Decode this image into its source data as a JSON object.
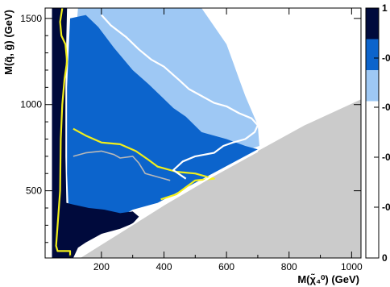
{
  "chart_data": {
    "type": "heatmap",
    "title": "",
    "xlabel": "M(χ̃₄⁰) (GeV)",
    "ylabel": "M(q̃, g̃) (GeV)",
    "xlim": [
      20,
      1030
    ],
    "ylim": [
      110,
      1560
    ],
    "x_ticks": [
      200,
      400,
      600,
      800,
      1000
    ],
    "x_tick_labels": [
      "200",
      "400",
      "600",
      "800",
      "1000"
    ],
    "y_ticks": [
      500,
      1000,
      1500
    ],
    "y_tick_labels": [
      "500",
      "1000",
      "1500"
    ],
    "grid": false,
    "colorbar": {
      "levels": [
        "1",
        "-0",
        "-0",
        "-0",
        "-0",
        "0"
      ],
      "colors": [
        "#000a3c",
        "#0c64cc",
        "#9ec8f4",
        "#ffffff"
      ]
    },
    "colors": {
      "level_3": "#000a3c",
      "level_2": "#0c64cc",
      "level_1": "#9ec8f4",
      "level_0": "#ffffff",
      "excluded_region": "#cbcbcb",
      "contour_yellow": "#f2ef1a",
      "contour_white": "#ffffff",
      "contour_grey": "#b8b8b8"
    },
    "regions": [
      {
        "level": 1,
        "points": [
          [
            125,
            1560
          ],
          [
            520,
            1560
          ],
          [
            600,
            1350
          ],
          [
            620,
            1250
          ],
          [
            640,
            1150
          ],
          [
            660,
            1050
          ],
          [
            700,
            880
          ],
          [
            705,
            760
          ],
          [
            640,
            720
          ],
          [
            560,
            710
          ],
          [
            480,
            760
          ],
          [
            410,
            800
          ],
          [
            360,
            850
          ],
          [
            310,
            940
          ],
          [
            255,
            1050
          ],
          [
            200,
            1180
          ],
          [
            150,
            1330
          ],
          [
            120,
            1440
          ]
        ]
      },
      {
        "level": 2,
        "points": [
          [
            100,
            1500
          ],
          [
            150,
            1520
          ],
          [
            190,
            1450
          ],
          [
            240,
            1330
          ],
          [
            300,
            1200
          ],
          [
            350,
            1120
          ],
          [
            390,
            1050
          ],
          [
            430,
            980
          ],
          [
            470,
            930
          ],
          [
            520,
            840
          ],
          [
            600,
            800
          ],
          [
            660,
            760
          ],
          [
            700,
            740
          ],
          [
            380,
            430
          ],
          [
            300,
            390
          ],
          [
            240,
            330
          ],
          [
            200,
            290
          ],
          [
            165,
            250
          ],
          [
            130,
            220
          ],
          [
            100,
            200
          ],
          [
            90,
            600
          ],
          [
            90,
            1100
          ]
        ]
      },
      {
        "level": 3,
        "points": [
          [
            42,
            1560
          ],
          [
            90,
            1560
          ],
          [
            88,
            1400
          ],
          [
            85,
            1100
          ],
          [
            85,
            700
          ],
          [
            88,
            430
          ],
          [
            110,
            420
          ],
          [
            160,
            400
          ],
          [
            210,
            390
          ],
          [
            260,
            370
          ],
          [
            300,
            380
          ],
          [
            320,
            350
          ],
          [
            300,
            310
          ],
          [
            260,
            280
          ],
          [
            200,
            250
          ],
          [
            150,
            200
          ],
          [
            125,
            170
          ],
          [
            110,
            110
          ],
          [
            42,
            110
          ]
        ]
      },
      {
        "level": 0,
        "points": [
          [
            20,
            1560
          ],
          [
            42,
            1560
          ],
          [
            42,
            110
          ],
          [
            20,
            110
          ]
        ]
      }
    ],
    "excluded_region": [
      [
        20,
        110
      ],
      [
        128,
        110
      ],
      [
        260,
        260
      ],
      [
        400,
        420
      ],
      [
        550,
        580
      ],
      [
        700,
        730
      ],
      [
        850,
        880
      ],
      [
        1030,
        1030
      ],
      [
        1030,
        110
      ]
    ],
    "contours": [
      {
        "color": "yellow",
        "points": [
          [
            75,
            1560
          ],
          [
            68,
            1480
          ],
          [
            72,
            1400
          ],
          [
            85,
            1350
          ],
          [
            90,
            1250
          ],
          [
            82,
            1150
          ],
          [
            75,
            1000
          ],
          [
            70,
            800
          ],
          [
            68,
            500
          ],
          [
            60,
            300
          ],
          [
            55,
            180
          ],
          [
            60,
            150
          ],
          [
            100,
            150
          ],
          [
            100,
            120
          ]
        ]
      },
      {
        "color": "yellow",
        "points": [
          [
            110,
            860
          ],
          [
            150,
            820
          ],
          [
            200,
            780
          ],
          [
            260,
            770
          ],
          [
            310,
            730
          ],
          [
            350,
            680
          ],
          [
            380,
            640
          ],
          [
            440,
            610
          ],
          [
            500,
            600
          ],
          [
            560,
            570
          ],
          [
            500,
            560
          ],
          [
            470,
            520
          ],
          [
            440,
            480
          ],
          [
            390,
            450
          ]
        ]
      },
      {
        "color": "grey",
        "points": [
          [
            110,
            700
          ],
          [
            150,
            720
          ],
          [
            200,
            730
          ],
          [
            240,
            710
          ],
          [
            260,
            690
          ],
          [
            300,
            700
          ],
          [
            320,
            660
          ],
          [
            340,
            600
          ],
          [
            380,
            580
          ],
          [
            420,
            560
          ]
        ]
      },
      {
        "color": "white",
        "points": [
          [
            200,
            1520
          ],
          [
            230,
            1460
          ],
          [
            280,
            1390
          ],
          [
            320,
            1320
          ],
          [
            360,
            1260
          ],
          [
            400,
            1220
          ],
          [
            450,
            1140
          ],
          [
            480,
            1090
          ],
          [
            520,
            1050
          ],
          [
            560,
            1010
          ],
          [
            600,
            990
          ],
          [
            640,
            950
          ],
          [
            680,
            920
          ],
          [
            700,
            880
          ],
          [
            690,
            840
          ],
          [
            660,
            800
          ],
          [
            620,
            780
          ],
          [
            590,
            760
          ],
          [
            560,
            720
          ],
          [
            500,
            700
          ],
          [
            460,
            670
          ],
          [
            430,
            620
          ],
          [
            470,
            570
          ]
        ]
      },
      {
        "color": "white",
        "points": [
          [
            128,
            110
          ],
          [
            260,
            260
          ],
          [
            400,
            420
          ],
          [
            550,
            580
          ],
          [
            700,
            730
          ]
        ]
      }
    ]
  }
}
